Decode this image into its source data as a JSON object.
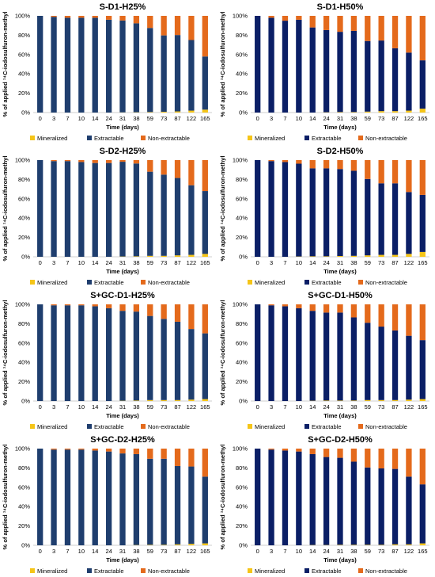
{
  "colors": {
    "mineralized": "#F5C518",
    "extractable": "#1F3E6E",
    "nonextractable": "#E46A1C",
    "extractable_dark": "#0B1F66"
  },
  "chart_data": [
    {
      "type": "bar",
      "stacked": true,
      "title": "S-D1-H25%",
      "xlabel": "Time (days)",
      "ylabel": "% of applied ¹⁴C-iodosulfuron-methyl",
      "categories": [
        "0",
        "3",
        "7",
        "10",
        "14",
        "24",
        "31",
        "38",
        "59",
        "73",
        "87",
        "122",
        "165"
      ],
      "yticks": [
        "0%",
        "20%",
        "40%",
        "60%",
        "80%",
        "100%"
      ],
      "ylim": [
        0,
        100
      ],
      "legend": "bottom",
      "series": [
        {
          "name": "Mineralized",
          "values": [
            0,
            0,
            0,
            0,
            0,
            0,
            0.2,
            0.3,
            0.5,
            0.8,
            1.2,
            2,
            3
          ]
        },
        {
          "name": "Extractable",
          "values": [
            100,
            99,
            98,
            98,
            98,
            96,
            95,
            92,
            87,
            79,
            79,
            73,
            55
          ]
        },
        {
          "name": "Non-extractable",
          "values": [
            0,
            1,
            2,
            2,
            2,
            4,
            4.8,
            7.7,
            12.5,
            20.2,
            19.8,
            25,
            42
          ]
        }
      ]
    },
    {
      "type": "bar",
      "stacked": true,
      "title": "S-D1-H50%",
      "xlabel": "Time (days)",
      "ylabel": "% of applied ¹⁴C-iodosulfuron-methyl",
      "categories": [
        "0",
        "3",
        "7",
        "10",
        "14",
        "24",
        "31",
        "38",
        "59",
        "73",
        "87",
        "122",
        "165"
      ],
      "yticks": [
        "0%",
        "20%",
        "40%",
        "60%",
        "80%",
        "100%"
      ],
      "ylim": [
        0,
        100
      ],
      "legend": "bottom",
      "series": [
        {
          "name": "Mineralized",
          "values": [
            0,
            0,
            0,
            0,
            0,
            0.3,
            0.5,
            0.5,
            1,
            1.5,
            1.5,
            2,
            4
          ]
        },
        {
          "name": "Extractable",
          "values": [
            100,
            98,
            95,
            96,
            88,
            85,
            83,
            84,
            73,
            73,
            65,
            60,
            50
          ]
        },
        {
          "name": "Non-extractable",
          "values": [
            0,
            2,
            5,
            4,
            12,
            14.7,
            16.5,
            15.5,
            26,
            25.5,
            33.5,
            38,
            46
          ]
        }
      ]
    },
    {
      "type": "bar",
      "stacked": true,
      "title": "S-D2-H25%",
      "xlabel": "Time (days)",
      "ylabel": "% of applied ¹⁴C-iodosulfuron-methyl",
      "categories": [
        "0",
        "3",
        "7",
        "10",
        "14",
        "24",
        "31",
        "38",
        "59",
        "73",
        "87",
        "122",
        "165"
      ],
      "yticks": [
        "0%",
        "20%",
        "40%",
        "60%",
        "80%",
        "100%"
      ],
      "ylim": [
        0,
        100
      ],
      "legend": "bottom",
      "series": [
        {
          "name": "Mineralized",
          "values": [
            0,
            0,
            0,
            0,
            0,
            0,
            0.3,
            0.5,
            1,
            1,
            1.5,
            2,
            3
          ]
        },
        {
          "name": "Extractable",
          "values": [
            100,
            99,
            99,
            98,
            97,
            97,
            98,
            96,
            87,
            84,
            80,
            72,
            65
          ]
        },
        {
          "name": "Non-extractable",
          "values": [
            0,
            1,
            1,
            2,
            3,
            3,
            1.7,
            3.5,
            12,
            15,
            18.5,
            26,
            32
          ]
        }
      ]
    },
    {
      "type": "bar",
      "stacked": true,
      "title": "S-D2-H50%",
      "xlabel": "Time (days)",
      "ylabel": "% of applied ¹⁴C-iodosulfuron-methyl",
      "categories": [
        "0",
        "3",
        "7",
        "10",
        "14",
        "24",
        "31",
        "38",
        "59",
        "73",
        "87",
        "122",
        "165"
      ],
      "yticks": [
        "0%",
        "20%",
        "40%",
        "60%",
        "80%",
        "100%"
      ],
      "ylim": [
        0,
        100
      ],
      "legend": "bottom",
      "series": [
        {
          "name": "Mineralized",
          "values": [
            0,
            0,
            0,
            0.3,
            0.5,
            0.5,
            0.8,
            1,
            1.5,
            2,
            2,
            3,
            5
          ]
        },
        {
          "name": "Extractable",
          "values": [
            100,
            99,
            98,
            96,
            91,
            91,
            90,
            88,
            79,
            74,
            74,
            64,
            59
          ]
        },
        {
          "name": "Non-extractable",
          "values": [
            0,
            1,
            2,
            3.7,
            8.5,
            8.5,
            9.2,
            11,
            19.5,
            24,
            24,
            33,
            36
          ]
        }
      ]
    },
    {
      "type": "bar",
      "stacked": true,
      "title": "S+GC-D1-H25%",
      "xlabel": "Time (days)",
      "ylabel": "% of applied ¹⁴C-iodosulfuron-methyl",
      "categories": [
        "0",
        "3",
        "7",
        "10",
        "14",
        "24",
        "31",
        "38",
        "59",
        "73",
        "87",
        "122",
        "165"
      ],
      "yticks": [
        "0%",
        "20%",
        "40%",
        "60%",
        "80%",
        "100%"
      ],
      "ylim": [
        0,
        100
      ],
      "legend": "bottom",
      "series": [
        {
          "name": "Mineralized",
          "values": [
            0,
            0,
            0,
            0,
            0,
            0,
            0.3,
            0.5,
            1,
            1,
            1,
            1.5,
            2
          ]
        },
        {
          "name": "Extractable",
          "values": [
            100,
            99,
            99,
            99,
            98,
            96,
            93,
            92,
            87,
            84,
            81,
            73,
            68
          ]
        },
        {
          "name": "Non-extractable",
          "values": [
            0,
            1,
            1,
            1,
            2,
            4,
            6.7,
            7.5,
            12,
            15,
            18,
            25.5,
            30
          ]
        }
      ]
    },
    {
      "type": "bar",
      "stacked": true,
      "title": "S+GC-D1-H50%",
      "xlabel": "Time (days)",
      "ylabel": "% of applied ¹⁴C-iodosulfuron-methyl",
      "categories": [
        "0",
        "3",
        "7",
        "10",
        "14",
        "24",
        "31",
        "38",
        "59",
        "73",
        "87",
        "122",
        "165"
      ],
      "yticks": [
        "0%",
        "20%",
        "40%",
        "60%",
        "80%",
        "100%"
      ],
      "ylim": [
        0,
        100
      ],
      "legend": "bottom",
      "series": [
        {
          "name": "Mineralized",
          "values": [
            0,
            0,
            0,
            0,
            0.3,
            0.5,
            0.5,
            0.5,
            1,
            1,
            1,
            1.5,
            2
          ]
        },
        {
          "name": "Extractable",
          "values": [
            100,
            99,
            98,
            96,
            93,
            91,
            91,
            86,
            80,
            76,
            72,
            66,
            61
          ]
        },
        {
          "name": "Non-extractable",
          "values": [
            0,
            1,
            2,
            4,
            6.7,
            8.5,
            8.5,
            13.5,
            19,
            23,
            27,
            32.5,
            37
          ]
        }
      ]
    },
    {
      "type": "bar",
      "stacked": true,
      "title": "S+GC-D2-H25%",
      "xlabel": "Time (days)",
      "ylabel": "% of applied ¹⁴C-iodosulfuron-methyl",
      "categories": [
        "0",
        "3",
        "7",
        "10",
        "14",
        "24",
        "31",
        "38",
        "59",
        "73",
        "87",
        "122",
        "165"
      ],
      "yticks": [
        "0%",
        "20%",
        "40%",
        "60%",
        "80%",
        "100%"
      ],
      "ylim": [
        0,
        100
      ],
      "legend": "bottom",
      "series": [
        {
          "name": "Mineralized",
          "values": [
            0,
            0,
            0,
            0,
            0,
            0,
            0,
            0.3,
            0.5,
            0.5,
            1,
            1.5,
            2
          ]
        },
        {
          "name": "Extractable",
          "values": [
            100,
            99,
            99,
            99,
            98,
            97,
            95,
            94,
            89,
            89,
            81,
            80,
            69
          ]
        },
        {
          "name": "Non-extractable",
          "values": [
            0,
            1,
            1,
            1,
            2,
            3,
            5,
            5.7,
            10.5,
            10.5,
            18,
            18.5,
            29
          ]
        }
      ]
    },
    {
      "type": "bar",
      "stacked": true,
      "title": "S+GC-D2-H50%",
      "xlabel": "Time (days)",
      "ylabel": "% of applied ¹⁴C-iodosulfuron-methyl",
      "categories": [
        "0",
        "3",
        "7",
        "10",
        "14",
        "24",
        "31",
        "38",
        "59",
        "73",
        "87",
        "122",
        "165"
      ],
      "yticks": [
        "0%",
        "20%",
        "40%",
        "60%",
        "80%",
        "100%"
      ],
      "ylim": [
        0,
        100
      ],
      "legend": "bottom",
      "series": [
        {
          "name": "Mineralized",
          "values": [
            0,
            0,
            0,
            0,
            0.3,
            0.3,
            0.5,
            0.5,
            0.5,
            0.5,
            1,
            1,
            2
          ]
        },
        {
          "name": "Extractable",
          "values": [
            100,
            99,
            98,
            97,
            94,
            91,
            90,
            86,
            80,
            79,
            78,
            70,
            61
          ]
        },
        {
          "name": "Non-extractable",
          "values": [
            0,
            1,
            2,
            3,
            5.7,
            8.7,
            9.5,
            13.5,
            19.5,
            20.5,
            21,
            29,
            37
          ]
        }
      ]
    }
  ]
}
